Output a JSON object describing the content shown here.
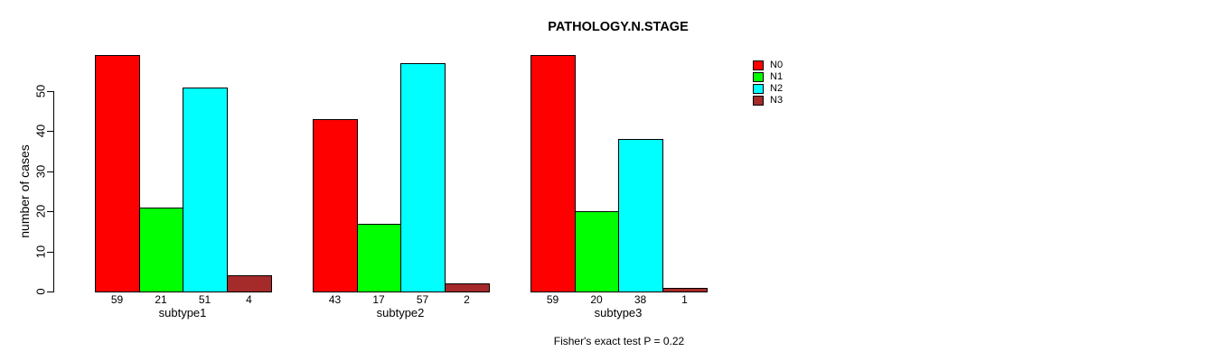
{
  "page": {
    "background": "#ffffff"
  },
  "chart_data": {
    "type": "bar",
    "title": "PATHOLOGY.N.STAGE",
    "xlabel": "",
    "ylabel": "number of cases",
    "categories": [
      "subtype1",
      "subtype2",
      "subtype3"
    ],
    "series": [
      {
        "name": "N0",
        "color": "#FF0000",
        "values": [
          59,
          43,
          59
        ]
      },
      {
        "name": "N1",
        "color": "#00FF00",
        "values": [
          21,
          17,
          20
        ]
      },
      {
        "name": "N2",
        "color": "#00FFFF",
        "values": [
          51,
          57,
          38
        ]
      },
      {
        "name": "N3",
        "color": "#A52A2A",
        "values": [
          4,
          2,
          1
        ]
      }
    ],
    "bar_value_labels_shown": true,
    "yticks": [
      0,
      10,
      20,
      30,
      40,
      50
    ],
    "ylim": [
      0,
      59
    ],
    "grid": false,
    "bar_border_color": "#000000",
    "legend_position": "top-right",
    "annotation": "Fisher's exact test P = 0.22"
  }
}
